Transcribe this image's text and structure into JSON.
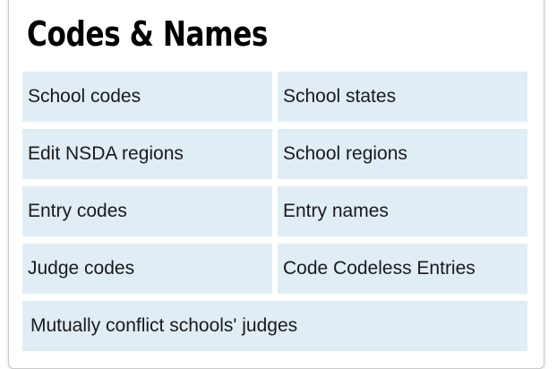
{
  "section": {
    "title": "Codes & Names"
  },
  "links": [
    {
      "label": "School codes"
    },
    {
      "label": "School states"
    },
    {
      "label": "Edit NSDA regions"
    },
    {
      "label": "School regions"
    },
    {
      "label": "Entry codes"
    },
    {
      "label": "Entry names"
    },
    {
      "label": "Judge codes"
    },
    {
      "label": "Code Codeless Entries"
    },
    {
      "label": "Mutually conflict schools' judges"
    }
  ]
}
